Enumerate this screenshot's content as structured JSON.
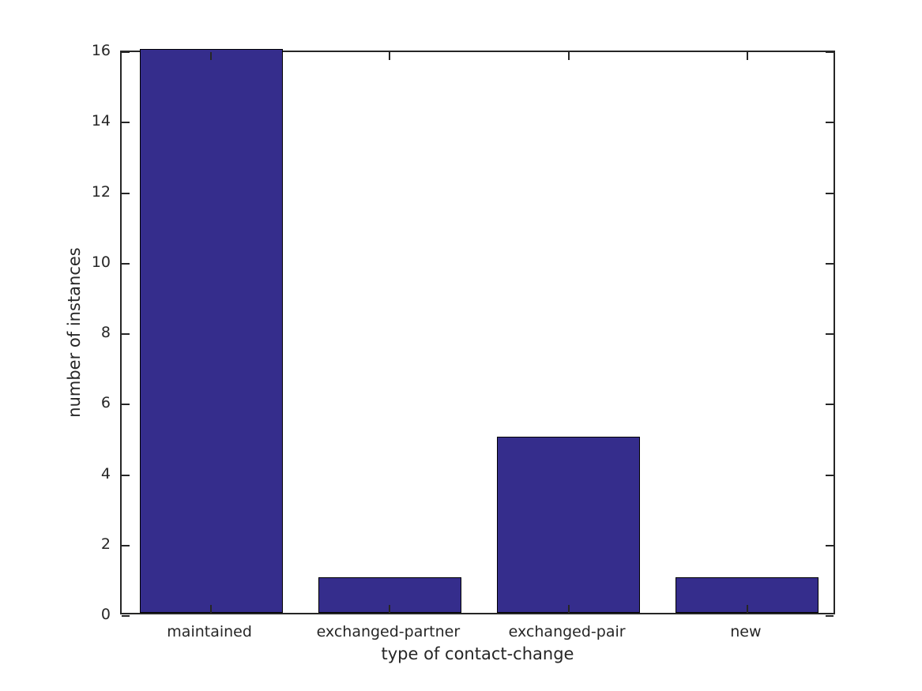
{
  "figure": {
    "background": "#ffffff",
    "text_color": "#262626",
    "axis_color": "#262626"
  },
  "chart_data": {
    "type": "bar",
    "categories": [
      "maintained",
      "exchanged-partner",
      "exchanged-pair",
      "new"
    ],
    "values": [
      16,
      1,
      5,
      1
    ],
    "title": "",
    "xlabel": "type of contact-change",
    "ylabel": "number of instances",
    "ylim": [
      0,
      16
    ],
    "yticks": [
      0,
      2,
      4,
      6,
      8,
      10,
      12,
      14,
      16
    ],
    "bar_color": "#352d8c",
    "bar_edge_color": "#000000",
    "bar_width_fraction": 0.8,
    "grid": false,
    "legend": null,
    "box": true,
    "tick_direction": "in"
  }
}
